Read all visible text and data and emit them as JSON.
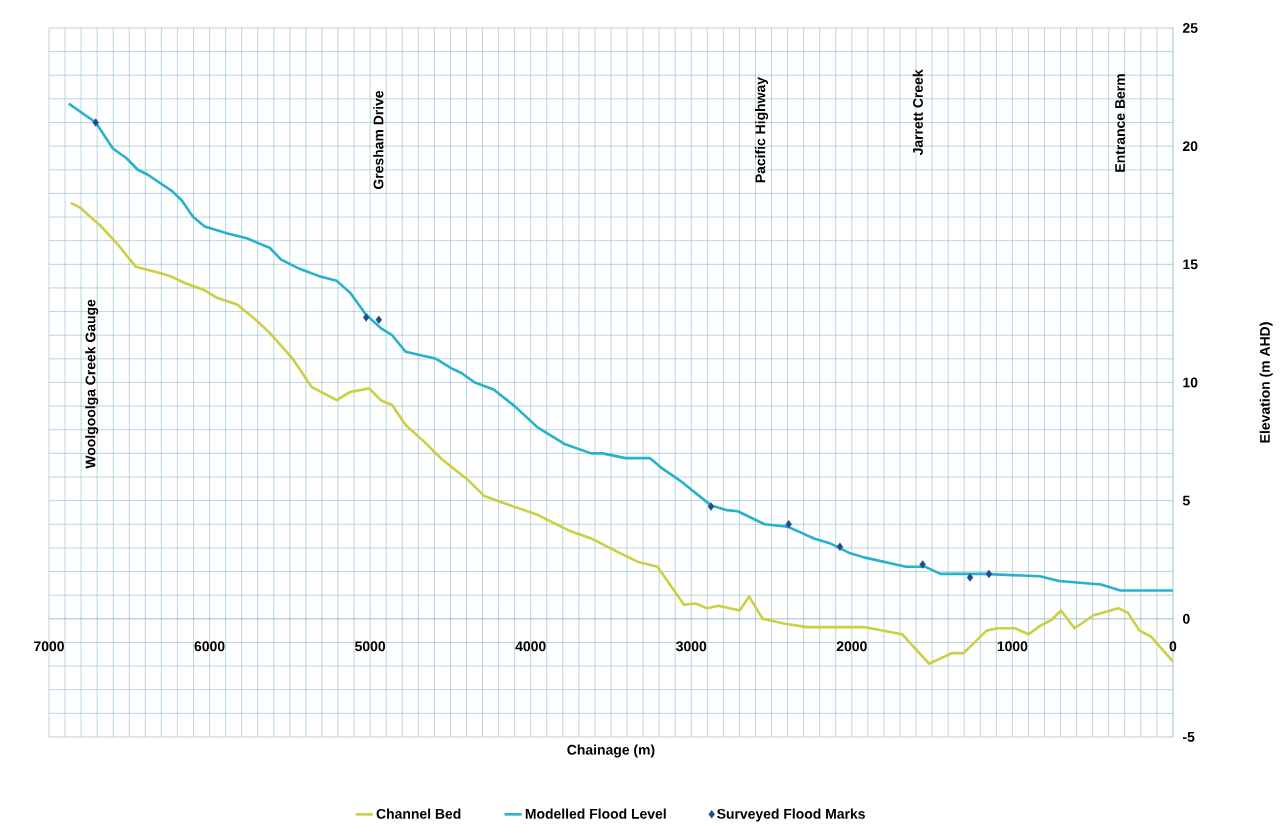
{
  "chart_data": {
    "type": "line",
    "xlabel": "Chainage (m)",
    "ylabel": "Elevation (m AHD)",
    "xlim": [
      7000,
      0
    ],
    "ylim": [
      -5,
      25
    ],
    "xticks": [
      7000,
      {
        "value": 6900,
        "label": null
      },
      {
        "value": 6800,
        "label": null
      },
      {
        "value": 6700,
        "label": null
      },
      {
        "value": 6600,
        "label": null
      },
      {
        "value": 6500,
        "label": null
      },
      {
        "value": 6400,
        "label": null
      },
      {
        "value": 6300,
        "label": null
      },
      {
        "value": 6200,
        "label": null
      },
      {
        "value": 6100,
        "label": null
      },
      6000,
      {
        "value": 5900,
        "label": null
      },
      {
        "value": 5800,
        "label": null
      },
      {
        "value": 5700,
        "label": null
      },
      {
        "value": 5600,
        "label": null
      },
      {
        "value": 5500,
        "label": null
      },
      {
        "value": 5400,
        "label": null
      },
      {
        "value": 5300,
        "label": null
      },
      {
        "value": 5200,
        "label": null
      },
      {
        "value": 5100,
        "label": null
      },
      5000,
      {
        "value": 4900,
        "label": null
      },
      {
        "value": 4800,
        "label": null
      },
      {
        "value": 4700,
        "label": null
      },
      {
        "value": 4600,
        "label": null
      },
      {
        "value": 4500,
        "label": null
      },
      {
        "value": 4400,
        "label": null
      },
      {
        "value": 4300,
        "label": null
      },
      {
        "value": 4200,
        "label": null
      },
      {
        "value": 4100,
        "label": null
      },
      4000,
      {
        "value": 3900,
        "label": null
      },
      {
        "value": 3800,
        "label": null
      },
      {
        "value": 3700,
        "label": null
      },
      {
        "value": 3600,
        "label": null
      },
      {
        "value": 3500,
        "label": null
      },
      {
        "value": 3400,
        "label": null
      },
      {
        "value": 3300,
        "label": null
      },
      {
        "value": 3200,
        "label": null
      },
      {
        "value": 3100,
        "label": null
      },
      3000,
      {
        "value": 2900,
        "label": null
      },
      {
        "value": 2800,
        "label": null
      },
      {
        "value": 2700,
        "label": null
      },
      {
        "value": 2600,
        "label": null
      },
      {
        "value": 2500,
        "label": null
      },
      {
        "value": 2400,
        "label": null
      },
      {
        "value": 2300,
        "label": null
      },
      {
        "value": 2200,
        "label": null
      },
      {
        "value": 2100,
        "label": null
      },
      2000,
      {
        "value": 1900,
        "label": null
      },
      {
        "value": 1800,
        "label": null
      },
      {
        "value": 1700,
        "label": null
      },
      {
        "value": 1600,
        "label": null
      },
      {
        "value": 1500,
        "label": null
      },
      {
        "value": 1400,
        "label": null
      },
      {
        "value": 1300,
        "label": null
      },
      {
        "value": 1200,
        "label": null
      },
      {
        "value": 1100,
        "label": null
      },
      1000,
      {
        "value": 900,
        "label": null
      },
      {
        "value": 800,
        "label": null
      },
      {
        "value": 700,
        "label": null
      },
      {
        "value": 600,
        "label": null
      },
      {
        "value": 500,
        "label": null
      },
      {
        "value": 400,
        "label": null
      },
      {
        "value": 300,
        "label": null
      },
      {
        "value": 200,
        "label": null
      },
      {
        "value": 100,
        "label": null
      },
      0
    ],
    "yticks": [
      -5,
      {
        "value": -4,
        "label": null
      },
      {
        "value": -3,
        "label": null
      },
      {
        "value": -2,
        "label": null
      },
      {
        "value": -1,
        "label": null
      },
      0,
      {
        "value": 1,
        "label": null
      },
      {
        "value": 2,
        "label": null
      },
      {
        "value": 3,
        "label": null
      },
      {
        "value": 4,
        "label": null
      },
      5,
      {
        "value": 6,
        "label": null
      },
      {
        "value": 7,
        "label": null
      },
      {
        "value": 8,
        "label": null
      },
      {
        "value": 9,
        "label": null
      },
      10,
      {
        "value": 11,
        "label": null
      },
      {
        "value": 12,
        "label": null
      },
      {
        "value": 13,
        "label": null
      },
      {
        "value": 14,
        "label": null
      },
      15,
      {
        "value": 16,
        "label": null
      },
      {
        "value": 17,
        "label": null
      },
      {
        "value": 18,
        "label": null
      },
      {
        "value": 19,
        "label": null
      },
      20,
      {
        "value": 21,
        "label": null
      },
      {
        "value": 22,
        "label": null
      },
      {
        "value": 23,
        "label": null
      },
      {
        "value": 24,
        "label": null
      },
      25
    ],
    "grid": true,
    "legend": "bottom",
    "annotations": [
      "Woolgoolga Creek Gauge",
      "Gresham Drive",
      "Pacific Highway",
      "Jarrett Creek",
      "Entrance Berm"
    ],
    "series": [
      {
        "name": "Channel Bed",
        "color": "#c9d042",
        "x": [
          6864,
          6806,
          6675,
          6579,
          6460,
          6292,
          6245,
          6150,
          6030,
          5959,
          5828,
          5720,
          5625,
          5482,
          5363,
          5208,
          5124,
          5006,
          4934,
          4863,
          4779,
          4672,
          4553,
          4386,
          4290,
          4147,
          3957,
          3767,
          3623,
          3450,
          3329,
          3210,
          3045,
          2972,
          2902,
          2829,
          2698,
          2640,
          2555,
          2424,
          2281,
          1924,
          1687,
          1519,
          1376,
          1304,
          1161,
          1090,
          984,
          899,
          828,
          757,
          697,
          613,
          494,
          339,
          280,
          208,
          137,
          0
        ],
        "values": [
          17.6,
          17.4,
          16.6,
          15.9,
          14.9,
          14.6,
          14.5,
          14.2,
          13.9,
          13.6,
          13.3,
          12.7,
          12.1,
          11.0,
          9.8,
          9.25,
          9.6,
          9.75,
          9.25,
          9.05,
          8.2,
          7.55,
          6.75,
          5.85,
          5.2,
          4.85,
          4.4,
          3.75,
          3.4,
          2.8,
          2.4,
          2.2,
          0.6,
          0.65,
          0.45,
          0.55,
          0.35,
          0.95,
          0.0,
          -0.2,
          -0.35,
          -0.35,
          -0.65,
          -1.9,
          -1.45,
          -1.45,
          -0.5,
          -0.4,
          -0.4,
          -0.65,
          -0.3,
          -0.05,
          0.35,
          -0.4,
          0.15,
          0.45,
          0.25,
          -0.5,
          -0.75,
          -1.8
        ]
      },
      {
        "name": "Modelled Flood Level",
        "color": "#27b2cc",
        "x": [
          6877,
          6709,
          6602,
          6519,
          6447,
          6387,
          6233,
          6173,
          6102,
          6030,
          5887,
          5768,
          5626,
          5554,
          5436,
          5317,
          5208,
          5124,
          5029,
          4934,
          4863,
          4779,
          4589,
          4493,
          4431,
          4348,
          4231,
          4100,
          3957,
          3790,
          3623,
          3553,
          3410,
          3258,
          3188,
          3070,
          2877,
          2781,
          2710,
          2543,
          2400,
          2235,
          2138,
          2019,
          1924,
          1663,
          1542,
          1447,
          1185,
          828,
          710,
          448,
          398,
          327,
          0
        ],
        "values": [
          21.8,
          21.0,
          19.9,
          19.5,
          19.0,
          18.8,
          18.1,
          17.7,
          17.0,
          16.6,
          16.3,
          16.1,
          15.7,
          15.2,
          14.8,
          14.5,
          14.3,
          13.8,
          12.9,
          12.3,
          12.0,
          11.3,
          11.0,
          10.6,
          10.4,
          10.0,
          9.7,
          9.0,
          8.1,
          7.4,
          7.0,
          7.0,
          6.8,
          6.8,
          6.4,
          5.85,
          4.8,
          4.6,
          4.55,
          4.0,
          3.9,
          3.4,
          3.2,
          2.8,
          2.6,
          2.2,
          2.2,
          1.9,
          1.9,
          1.8,
          1.6,
          1.45,
          1.35,
          1.2,
          1.2
        ]
      },
      {
        "name": "Surveyed Flood Marks",
        "type": "scatter",
        "color": "#1f4e8c",
        "marker": "diamond",
        "x": [
          6709,
          5025,
          4946,
          2877,
          2393,
          2074,
          1559,
          1264,
          1146
        ],
        "values": [
          21.0,
          12.75,
          12.65,
          4.75,
          4.0,
          3.05,
          2.3,
          1.75,
          1.9
        ]
      }
    ]
  }
}
